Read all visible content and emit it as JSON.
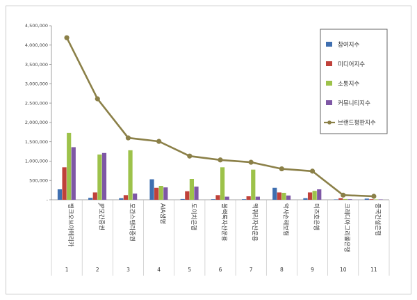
{
  "chart_data": {
    "type": "bar",
    "categories": [
      "1",
      "2",
      "3",
      "4",
      "5",
      "6",
      "7",
      "8",
      "9",
      "10",
      "11"
    ],
    "category_names": [
      "뱅크오브아메리카",
      "JP모간증권",
      "모간스탠리증권",
      "AIA생명",
      "도이치은행",
      "블랙록자산운용",
      "맥쿼리자산운용",
      "악사손해보험",
      "미즈호은행",
      "크레디아그리콜은행",
      "중국건설은행"
    ],
    "series": [
      {
        "name": "참여지수",
        "kind": "bar",
        "color": "#3f6fb0",
        "values": [
          270000,
          50000,
          40000,
          530000,
          20000,
          15000,
          15000,
          310000,
          40000,
          10000,
          30000
        ]
      },
      {
        "name": "미디어지수",
        "kind": "bar",
        "color": "#c0413a",
        "values": [
          840000,
          190000,
          120000,
          310000,
          220000,
          120000,
          90000,
          190000,
          190000,
          40000,
          15000
        ]
      },
      {
        "name": "소통지수",
        "kind": "bar",
        "color": "#9dc24a",
        "values": [
          1730000,
          1170000,
          1280000,
          360000,
          540000,
          840000,
          780000,
          180000,
          230000,
          20000,
          10000
        ]
      },
      {
        "name": "커뮤니티지수",
        "kind": "bar",
        "color": "#7e57a5",
        "values": [
          1360000,
          1210000,
          160000,
          320000,
          340000,
          80000,
          80000,
          110000,
          270000,
          15000,
          10000
        ]
      },
      {
        "name": "브랜드평판지수",
        "kind": "line",
        "color": "#8b8048",
        "values": [
          4190000,
          2610000,
          1600000,
          1510000,
          1130000,
          1030000,
          970000,
          800000,
          740000,
          120000,
          90000
        ]
      }
    ],
    "y_ticks": [
      "4,500,000",
      "4,000,000",
      "3,500,000",
      "3,000,000",
      "2,500,000",
      "2,000,000",
      "1,500,000",
      "1,000,000",
      "500,000",
      "-"
    ],
    "ylim": [
      0,
      4500000
    ],
    "title": "",
    "xlabel": "",
    "ylabel": "",
    "legend_position": "top-right",
    "grid": false
  }
}
